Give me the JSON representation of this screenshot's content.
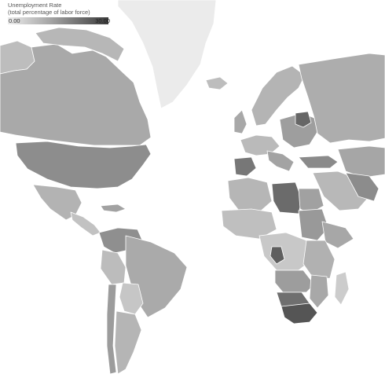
{
  "legend": {
    "title_line1": "Unemployment Rate",
    "title_line2": "(total percentage of labor force)",
    "min_label": "0.00",
    "max_label": "30.00",
    "min_value": 0,
    "max_value": 30
  },
  "colors": {
    "ocean": "#ffffff",
    "land_low": "#d4d4d4",
    "land_high": "#4a4a4a",
    "greenland": "#ebebeb",
    "border": "#ffffff"
  }
}
